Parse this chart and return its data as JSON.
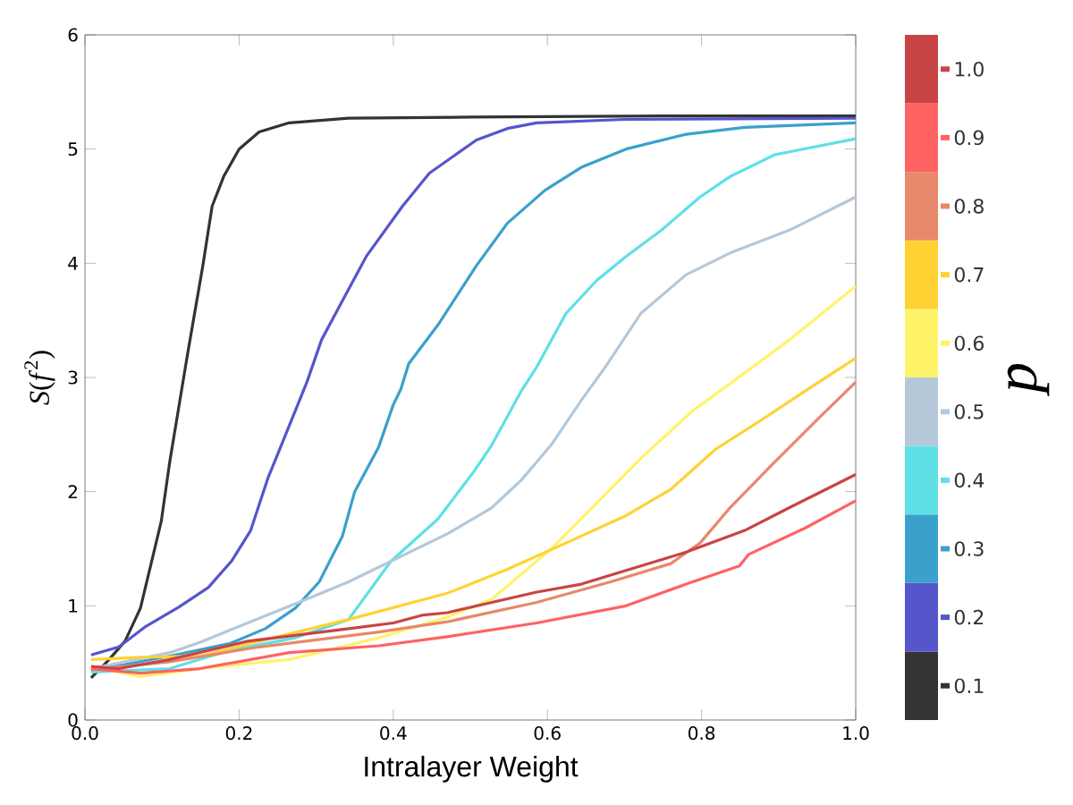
{
  "chart_data": {
    "type": "line",
    "xlabel": "Intralayer Weight",
    "ylabel": "*S*(*f*$^{2}$)",
    "legend_title": "p",
    "legend": "right",
    "xlim": [
      0,
      1
    ],
    "ylim": [
      0,
      6
    ],
    "xticks": [
      {
        "value": 0,
        "label": "0.0"
      },
      {
        "value": 0.2,
        "label": "0.2"
      },
      {
        "value": 0.4,
        "label": "0.4"
      },
      {
        "value": 0.6,
        "label": "0.6"
      },
      {
        "value": 0.8,
        "label": "0.8"
      },
      {
        "value": 1,
        "label": "1.0"
      }
    ],
    "yticks": [
      0,
      1,
      2,
      3,
      4,
      5,
      6
    ],
    "series": [
      {
        "name": "0.1",
        "color": "#333333",
        "x": [
          0.008,
          0.03,
          0.052,
          0.072,
          0.099,
          0.11,
          0.133,
          0.153,
          0.165,
          0.18,
          0.2,
          0.226,
          0.265,
          0.342,
          0.5,
          0.75,
          1.0
        ],
        "values": [
          0.37,
          0.52,
          0.69,
          0.98,
          1.74,
          2.26,
          3.2,
          3.98,
          4.5,
          4.76,
          5.0,
          5.15,
          5.23,
          5.27,
          5.28,
          5.29,
          5.29
        ]
      },
      {
        "name": "0.2",
        "color": "#5555cc",
        "x": [
          0.008,
          0.044,
          0.079,
          0.122,
          0.16,
          0.19,
          0.215,
          0.238,
          0.249,
          0.288,
          0.307,
          0.33,
          0.365,
          0.412,
          0.447,
          0.508,
          0.548,
          0.586,
          0.7,
          1.0
        ],
        "values": [
          0.57,
          0.64,
          0.82,
          0.99,
          1.16,
          1.39,
          1.66,
          2.13,
          2.31,
          2.96,
          3.33,
          3.62,
          4.06,
          4.5,
          4.79,
          5.08,
          5.18,
          5.23,
          5.26,
          5.27
        ]
      },
      {
        "name": "0.3",
        "color": "#3aa0cc",
        "x": [
          0.008,
          0.11,
          0.188,
          0.234,
          0.273,
          0.304,
          0.334,
          0.35,
          0.381,
          0.4,
          0.41,
          0.42,
          0.458,
          0.508,
          0.548,
          0.597,
          0.644,
          0.702,
          0.78,
          0.856,
          1.0
        ],
        "values": [
          0.43,
          0.56,
          0.67,
          0.8,
          0.98,
          1.21,
          1.61,
          2.0,
          2.39,
          2.76,
          2.9,
          3.12,
          3.46,
          3.98,
          4.35,
          4.64,
          4.84,
          5.0,
          5.13,
          5.19,
          5.23
        ]
      },
      {
        "name": "0.4",
        "color": "#5de0e6",
        "x": [
          0.008,
          0.11,
          0.188,
          0.273,
          0.342,
          0.397,
          0.458,
          0.505,
          0.528,
          0.566,
          0.586,
          0.624,
          0.664,
          0.702,
          0.748,
          0.798,
          0.837,
          0.895,
          1.0
        ],
        "values": [
          0.42,
          0.45,
          0.61,
          0.72,
          0.88,
          1.39,
          1.76,
          2.18,
          2.41,
          2.88,
          3.09,
          3.56,
          3.85,
          4.06,
          4.29,
          4.58,
          4.76,
          4.95,
          5.09
        ]
      },
      {
        "name": "0.5",
        "color": "#b4c8da",
        "x": [
          0.008,
          0.11,
          0.149,
          0.211,
          0.288,
          0.342,
          0.397,
          0.47,
          0.528,
          0.566,
          0.605,
          0.644,
          0.675,
          0.721,
          0.78,
          0.837,
          0.914,
          1.0
        ],
        "values": [
          0.45,
          0.59,
          0.68,
          0.85,
          1.06,
          1.21,
          1.39,
          1.63,
          1.86,
          2.1,
          2.41,
          2.8,
          3.09,
          3.56,
          3.9,
          4.09,
          4.29,
          4.58
        ]
      },
      {
        "name": "0.6",
        "color": "#fff36a",
        "x": [
          0.008,
          0.072,
          0.149,
          0.265,
          0.381,
          0.47,
          0.528,
          0.605,
          0.664,
          0.721,
          0.787,
          0.856,
          0.914,
          1.0
        ],
        "values": [
          0.47,
          0.38,
          0.45,
          0.53,
          0.72,
          0.9,
          1.06,
          1.5,
          1.9,
          2.29,
          2.7,
          3.04,
          3.33,
          3.8
        ]
      },
      {
        "name": "0.7",
        "color": "#ffd233",
        "x": [
          0.008,
          0.072,
          0.149,
          0.226,
          0.342,
          0.47,
          0.548,
          0.624,
          0.702,
          0.76,
          0.818,
          0.876,
          0.934,
          1.0
        ],
        "values": [
          0.53,
          0.55,
          0.56,
          0.69,
          0.88,
          1.11,
          1.32,
          1.55,
          1.79,
          2.02,
          2.37,
          2.62,
          2.88,
          3.17
        ]
      },
      {
        "name": "0.8",
        "color": "#e8886a",
        "x": [
          0.008,
          0.11,
          0.226,
          0.381,
          0.47,
          0.586,
          0.682,
          0.76,
          0.798,
          0.837,
          0.895,
          0.953,
          1.0
        ],
        "values": [
          0.44,
          0.51,
          0.64,
          0.77,
          0.86,
          1.03,
          1.21,
          1.37,
          1.55,
          1.86,
          2.26,
          2.65,
          2.96
        ]
      },
      {
        "name": "0.9",
        "color": "#ff6262",
        "x": [
          0.008,
          0.072,
          0.149,
          0.265,
          0.381,
          0.47,
          0.586,
          0.702,
          0.78,
          0.849,
          0.861,
          0.934,
          1.0
        ],
        "values": [
          0.45,
          0.41,
          0.45,
          0.59,
          0.65,
          0.73,
          0.85,
          1.0,
          1.19,
          1.35,
          1.45,
          1.68,
          1.92
        ]
      },
      {
        "name": "1.0",
        "color": "#c84444",
        "x": [
          0.008,
          0.044,
          0.11,
          0.211,
          0.342,
          0.4,
          0.439,
          0.47,
          0.586,
          0.644,
          0.702,
          0.78,
          0.856,
          0.914,
          1.0
        ],
        "values": [
          0.47,
          0.45,
          0.53,
          0.69,
          0.8,
          0.85,
          0.92,
          0.94,
          1.12,
          1.19,
          1.31,
          1.47,
          1.66,
          1.86,
          2.15
        ]
      }
    ]
  }
}
